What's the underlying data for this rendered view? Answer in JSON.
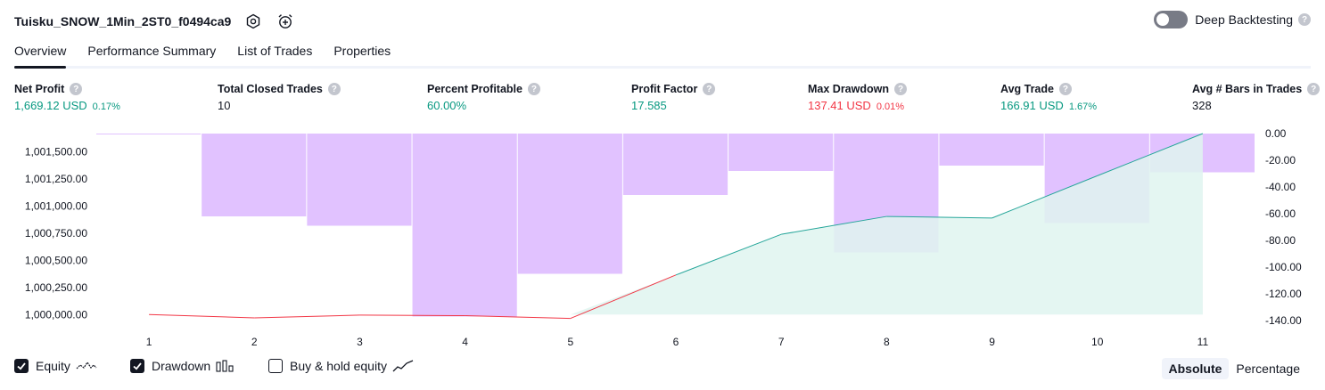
{
  "header": {
    "title": "Tuisku_SNOW_1Min_2ST0_f0494ca9",
    "deep_backtesting_label": "Deep Backtesting",
    "deep_backtesting_enabled": false
  },
  "tabs": [
    {
      "label": "Overview",
      "active": true
    },
    {
      "label": "Performance Summary",
      "active": false
    },
    {
      "label": "List of Trades",
      "active": false
    },
    {
      "label": "Properties",
      "active": false
    }
  ],
  "metrics": {
    "net_profit": {
      "label": "Net Profit",
      "value": "1,669.12 USD",
      "pct": "0.17%"
    },
    "total_closed_trades": {
      "label": "Total Closed Trades",
      "value": "10"
    },
    "percent_profitable": {
      "label": "Percent Profitable",
      "value": "60.00%"
    },
    "profit_factor": {
      "label": "Profit Factor",
      "value": "17.585"
    },
    "max_drawdown": {
      "label": "Max Drawdown",
      "value": "137.41 USD",
      "pct": "0.01%"
    },
    "avg_trade": {
      "label": "Avg Trade",
      "value": "166.91 USD",
      "pct": "1.67%"
    },
    "avg_bars": {
      "label": "Avg # Bars in Trades",
      "value": "328"
    }
  },
  "chart_data": {
    "type": "area",
    "x": [
      1,
      2,
      3,
      4,
      5,
      6,
      7,
      8,
      9,
      10,
      11
    ],
    "x_tick_labels": [
      "1",
      "2",
      "3",
      "4",
      "5",
      "6",
      "7",
      "8",
      "9",
      "10",
      "11"
    ],
    "left_axis": {
      "ticks": [
        1000000,
        1000250,
        1000500,
        1000750,
        1001000,
        1001250,
        1001500
      ],
      "tick_labels": [
        "1,000,000.00",
        "1,000,250.00",
        "1,000,500.00",
        "1,000,750.00",
        "1,001,000.00",
        "1,001,250.00",
        "1,001,500.00"
      ],
      "range": [
        999945,
        1001669
      ]
    },
    "right_axis": {
      "ticks": [
        0,
        -20,
        -40,
        -60,
        -80,
        -100,
        -120,
        -140
      ],
      "tick_labels": [
        "0.00",
        "-20.00",
        "-40.00",
        "-60.00",
        "-80.00",
        "-100.00",
        "-120.00",
        "-140.00"
      ],
      "range": [
        -140,
        0
      ]
    },
    "equity": [
      1000000,
      999970,
      999995,
      999990,
      999965,
      1000365,
      1000740,
      1000905,
      1000890,
      1001280,
      1001669
    ],
    "drawdown": [
      0,
      -62,
      -69,
      -137,
      -105,
      -46,
      -28,
      -89,
      -24,
      -67,
      -29
    ],
    "series": [
      {
        "name": "Equity",
        "enabled": true
      },
      {
        "name": "Drawdown",
        "enabled": true
      },
      {
        "name": "Buy & hold equity",
        "enabled": false
      }
    ],
    "colors": {
      "equity_up": "#26a69a",
      "equity_down": "#f23645",
      "equity_fill": "#dff5f0",
      "drawdown": "#d9b3ff"
    }
  },
  "legend": {
    "equity_label": "Equity",
    "drawdown_label": "Drawdown",
    "buy_hold_label": "Buy & hold equity"
  },
  "mode": {
    "absolute_label": "Absolute",
    "percentage_label": "Percentage",
    "selected": "Absolute"
  }
}
